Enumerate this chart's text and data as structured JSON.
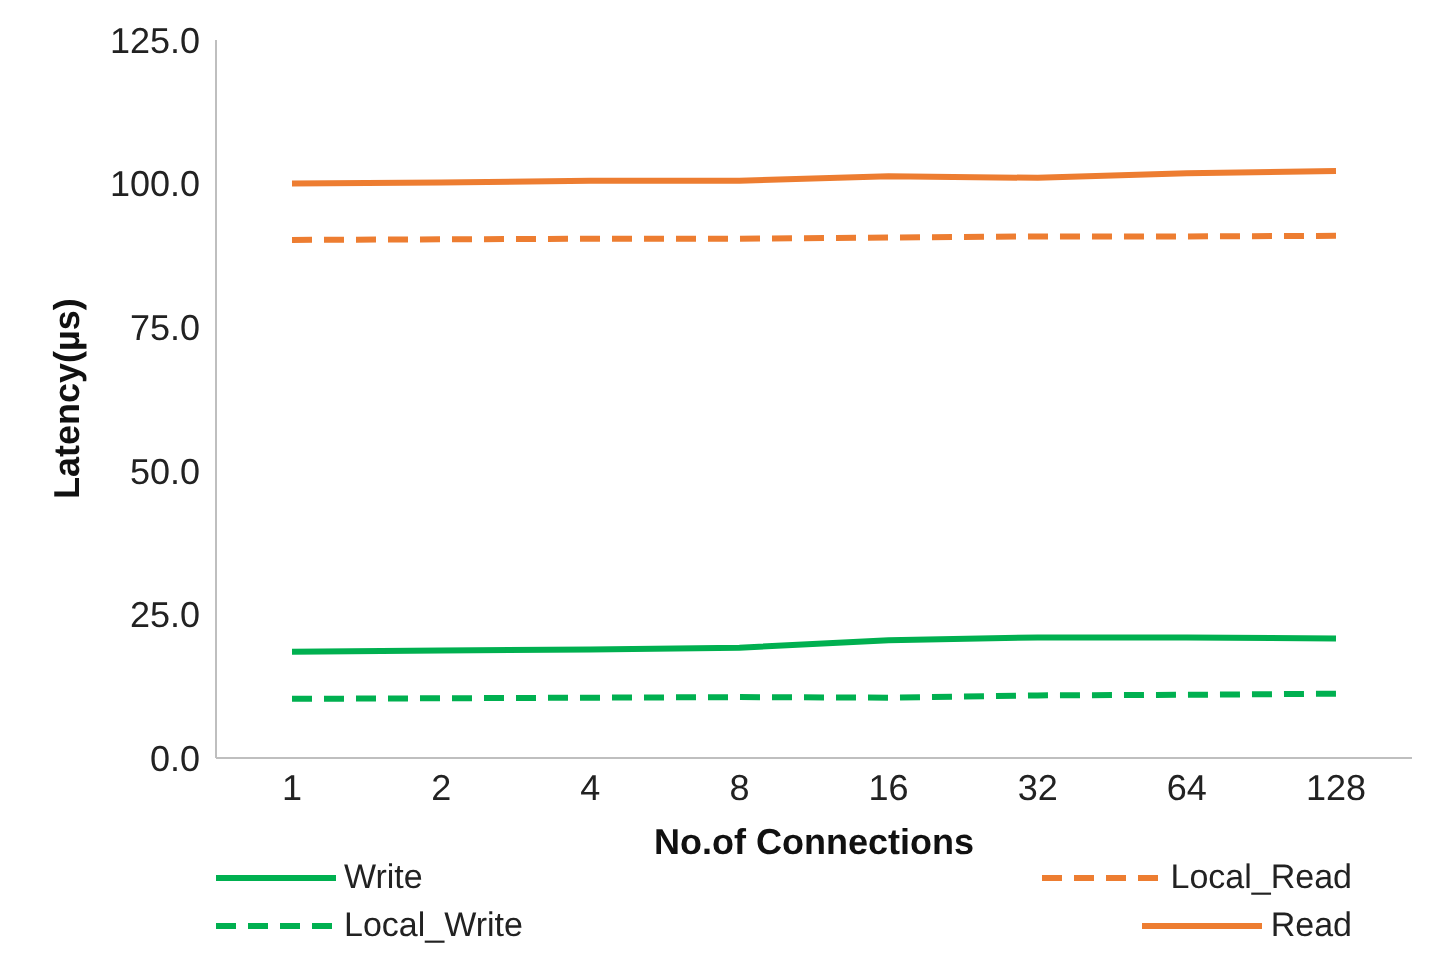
{
  "chart_data": {
    "type": "line",
    "xlabel": "No.of Connections",
    "ylabel": "Latency(µs)",
    "categories": [
      "1",
      "2",
      "4",
      "8",
      "16",
      "32",
      "64",
      "128"
    ],
    "series": [
      {
        "name": "Write",
        "color": "#00b050",
        "line_style": "solid",
        "values": [
          18.5,
          18.7,
          18.9,
          19.2,
          20.5,
          21.0,
          21.0,
          20.8
        ]
      },
      {
        "name": "Local_Read",
        "color": "#ed7d31",
        "line_style": "dashed",
        "values": [
          90.2,
          90.3,
          90.4,
          90.4,
          90.6,
          90.8,
          90.8,
          90.9
        ]
      },
      {
        "name": "Local_Write",
        "color": "#00b050",
        "line_style": "dashed",
        "values": [
          10.3,
          10.4,
          10.5,
          10.6,
          10.5,
          10.9,
          11.0,
          11.2
        ]
      },
      {
        "name": "Read",
        "color": "#ed7d31",
        "line_style": "solid",
        "values": [
          100.0,
          100.2,
          100.5,
          100.5,
          101.3,
          101.0,
          101.8,
          102.2
        ]
      }
    ],
    "ylim": [
      0,
      125
    ],
    "yticks": [
      {
        "value": 0,
        "label": "0.0"
      },
      {
        "value": 25,
        "label": "25.0"
      },
      {
        "value": 50,
        "label": "50.0"
      },
      {
        "value": 75,
        "label": "75.0"
      },
      {
        "value": 100,
        "label": "100.0"
      },
      {
        "value": 125,
        "label": "125.0"
      }
    ],
    "grid": false,
    "legend": "bottom",
    "marker": "none"
  }
}
